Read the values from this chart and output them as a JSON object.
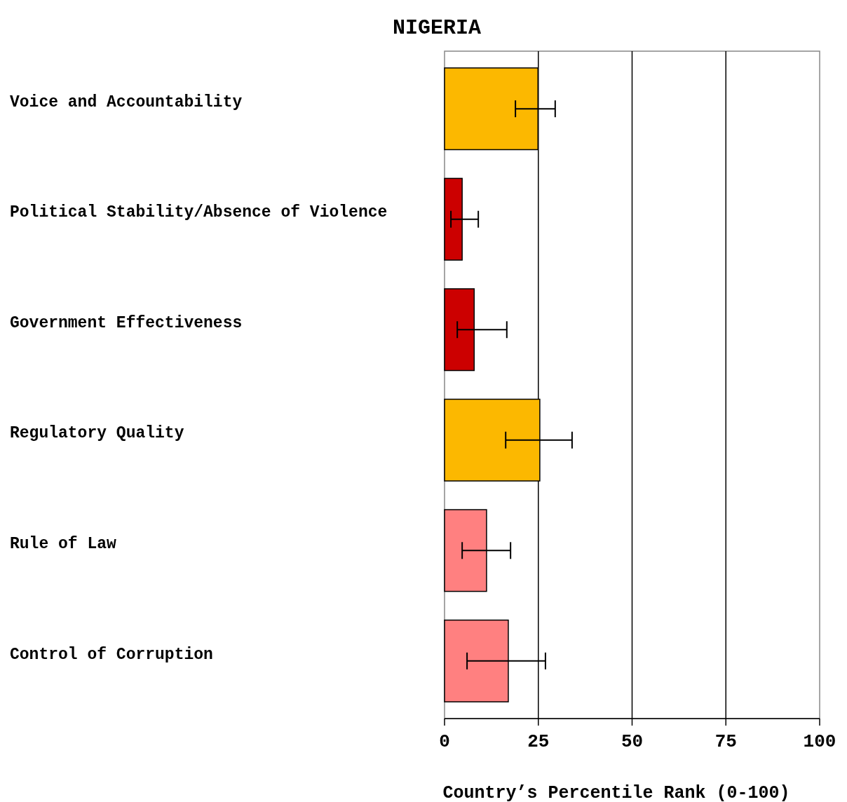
{
  "chart_data": {
    "type": "bar",
    "orientation": "horizontal",
    "title": "NIGERIA",
    "xlabel": "Country’s Percentile Rank (0-100)",
    "categories": [
      "Voice and Accountability",
      "Political Stability/Absence of Violence",
      "Government Effectiveness",
      "Regulatory Quality",
      "Rule of Law",
      "Control of Corruption"
    ],
    "values": [
      24.9,
      4.7,
      7.9,
      25.4,
      11.2,
      17.0
    ],
    "colors": [
      "#fcb800",
      "#cc0000",
      "#cc0000",
      "#fcb800",
      "#ff8080",
      "#ff8080"
    ],
    "errors": [
      [
        18.9,
        29.5
      ],
      [
        1.7,
        9.0
      ],
      [
        3.4,
        16.6
      ],
      [
        16.3,
        34.0
      ],
      [
        4.7,
        17.6
      ],
      [
        6.0,
        26.9
      ]
    ],
    "xlim": [
      0,
      100
    ],
    "xticks": [
      0,
      25,
      50,
      75,
      100
    ],
    "grid": "x"
  }
}
